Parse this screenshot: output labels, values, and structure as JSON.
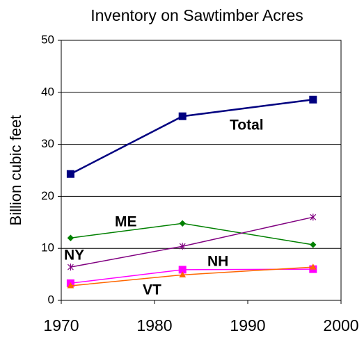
{
  "chart_data": {
    "type": "line",
    "title": "Inventory on Sawtimber Acres",
    "y_label": "Billion cubic feet",
    "x": [
      1971,
      1983,
      1997
    ],
    "series": [
      {
        "name": "Total",
        "color": "#000080",
        "marker": "square",
        "values": [
          24.3,
          35.4,
          38.6
        ]
      },
      {
        "name": "ME",
        "color": "#008000",
        "marker": "diamond",
        "values": [
          12.0,
          14.8,
          10.7
        ]
      },
      {
        "name": "NY",
        "color": "#800080",
        "marker": "star",
        "values": [
          6.4,
          10.4,
          16.0
        ]
      },
      {
        "name": "NH",
        "color": "#ff00ff",
        "marker": "square",
        "values": [
          3.3,
          5.9,
          6.0
        ]
      },
      {
        "name": "VT",
        "color": "#ff6600",
        "marker": "triangle",
        "values": [
          2.8,
          4.9,
          6.4
        ]
      }
    ],
    "xlim": [
      1970,
      2000
    ],
    "xticks": [
      1970,
      1980,
      1990,
      2000
    ],
    "ylim": [
      0,
      50
    ],
    "yticks": [
      0,
      10,
      20,
      30,
      40,
      50
    ],
    "grid": true
  }
}
